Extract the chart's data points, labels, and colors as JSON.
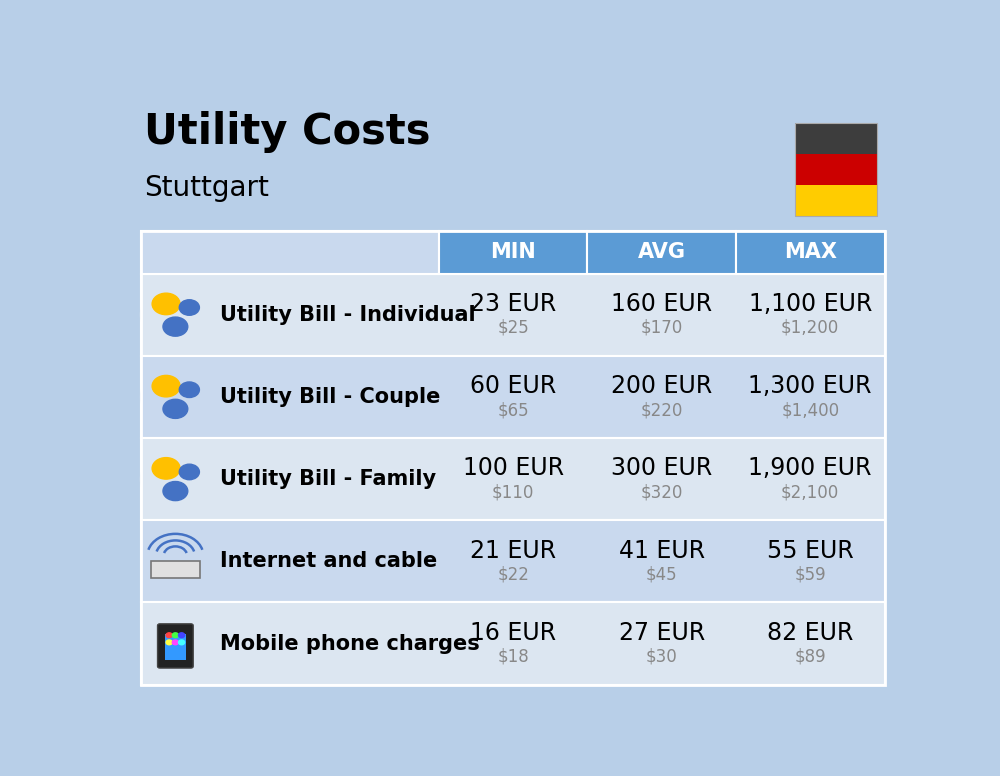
{
  "title": "Utility Costs",
  "subtitle": "Stuttgart",
  "background_color": "#b8cfe8",
  "header_bg_color": "#5b9bd5",
  "header_text_color": "#ffffff",
  "row_bg_color_1": "#dce6f1",
  "row_bg_color_2": "#c9d9ee",
  "col_header_labels": [
    "MIN",
    "AVG",
    "MAX"
  ],
  "rows": [
    {
      "label": "Utility Bill - Individual",
      "min_eur": "23 EUR",
      "min_usd": "$25",
      "avg_eur": "160 EUR",
      "avg_usd": "$170",
      "max_eur": "1,100 EUR",
      "max_usd": "$1,200"
    },
    {
      "label": "Utility Bill - Couple",
      "min_eur": "60 EUR",
      "min_usd": "$65",
      "avg_eur": "200 EUR",
      "avg_usd": "$220",
      "max_eur": "1,300 EUR",
      "max_usd": "$1,400"
    },
    {
      "label": "Utility Bill - Family",
      "min_eur": "100 EUR",
      "min_usd": "$110",
      "avg_eur": "300 EUR",
      "avg_usd": "$320",
      "max_eur": "1,900 EUR",
      "max_usd": "$2,100"
    },
    {
      "label": "Internet and cable",
      "min_eur": "21 EUR",
      "min_usd": "$22",
      "avg_eur": "41 EUR",
      "avg_usd": "$45",
      "max_eur": "55 EUR",
      "max_usd": "$59"
    },
    {
      "label": "Mobile phone charges",
      "min_eur": "16 EUR",
      "min_usd": "$18",
      "avg_eur": "27 EUR",
      "avg_usd": "$30",
      "max_eur": "82 EUR",
      "max_usd": "$89"
    }
  ],
  "eur_fontsize": 17,
  "usd_fontsize": 12,
  "label_fontsize": 15,
  "header_fontsize": 15,
  "title_fontsize": 30,
  "subtitle_fontsize": 20,
  "usd_color": "#888888",
  "flag_colors": [
    "#3d3d3d",
    "#cc0000",
    "#ffcc00"
  ],
  "icon_texts": [
    "utility",
    "utility",
    "utility",
    "internet",
    "mobile"
  ]
}
